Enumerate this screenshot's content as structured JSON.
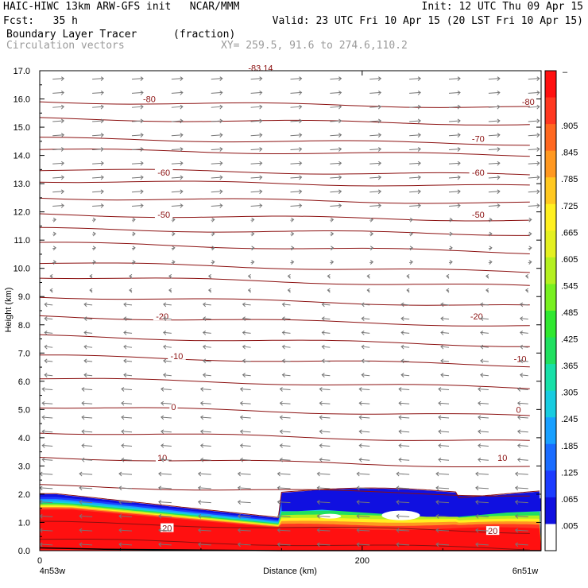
{
  "header": {
    "line1_left": "HAIC-HIWC 13km ARW-GFS init   NCAR/MMM",
    "line1_right": "Init: 12 UTC Thu 09 Apr 15",
    "line2_left": "Fcst:   35 h",
    "line2_right": "Valid: 23 UTC Fri 10 Apr 15 (20 LST Fri 10 Apr 15)",
    "line3_left": "Boundary Layer Tracer",
    "line3_mid": "(fraction)",
    "line4_left": "Circulation vectors",
    "line4_mid": "XY= 259.5, 91.6 to 274.6,110.2"
  },
  "chart_data": {
    "type": "heatmap",
    "title": "Boundary Layer Tracer",
    "units": "(fraction)",
    "overlay": "Circulation vectors",
    "xlabel": "Distance (km)",
    "ylabel": "Height (km)",
    "xlim": [
      0,
      311
    ],
    "ylim": [
      0,
      17
    ],
    "x_ticks": [
      0,
      200
    ],
    "y_ticks": [
      "0.0",
      "1.0",
      "2.0",
      "3.0",
      "4.0",
      "5.0",
      "6.0",
      "7.0",
      "8.0",
      "9.0",
      "10.0",
      "11.0",
      "12.0",
      "13.0",
      "14.0",
      "15.0",
      "16.0",
      "17.0"
    ],
    "x_end_labels": [
      "4n53w",
      "6n51w"
    ],
    "colorbar_labels": [
      ".005",
      ".065",
      ".125",
      ".185",
      ".245",
      ".305",
      ".365",
      ".425",
      ".485",
      ".545",
      ".605",
      ".665",
      ".725",
      ".785",
      ".845",
      ".905"
    ],
    "colorbar_colors": [
      "#ffffff",
      "#1010e0",
      "#1c3cff",
      "#1a6cff",
      "#19a0ff",
      "#18cce0",
      "#18e0a8",
      "#20e060",
      "#30e830",
      "#78f020",
      "#b4f020",
      "#e4f020",
      "#fff020",
      "#ffc820",
      "#ff9820",
      "#ff6820",
      "#ff3820",
      "#ff1010"
    ],
    "contour_labels": [
      {
        "text": "-80",
        "x": 68,
        "y": 16.0
      },
      {
        "text": "-80",
        "x": 303,
        "y": 15.9
      },
      {
        "text": "-70",
        "x": 272,
        "y": 14.6
      },
      {
        "text": "-60",
        "x": 77,
        "y": 13.4
      },
      {
        "text": "-60",
        "x": 272,
        "y": 13.4
      },
      {
        "text": "-50",
        "x": 77,
        "y": 11.9
      },
      {
        "text": "-50",
        "x": 272,
        "y": 11.9
      },
      {
        "text": "-20",
        "x": 76,
        "y": 8.3
      },
      {
        "text": "-20",
        "x": 271,
        "y": 8.3
      },
      {
        "text": "-10",
        "x": 85,
        "y": 6.9
      },
      {
        "text": "-10",
        "x": 298,
        "y": 6.8
      },
      {
        "text": "0",
        "x": 83,
        "y": 5.1
      },
      {
        "text": "0",
        "x": 297,
        "y": 5.0
      },
      {
        "text": "10",
        "x": 76,
        "y": 3.3
      },
      {
        "text": "10",
        "x": 287,
        "y": 3.3
      },
      {
        "text": "-83.14",
        "x": 137,
        "y": 17.1
      },
      {
        "text": "20",
        "x": 79,
        "y": 0.8
      },
      {
        "text": "20",
        "x": 281,
        "y": 0.7
      }
    ]
  },
  "colors": {
    "contour": "#8b1010",
    "vector": "#777777",
    "tracer_high": "#ff1010",
    "tracer_low": "#1010e0"
  }
}
